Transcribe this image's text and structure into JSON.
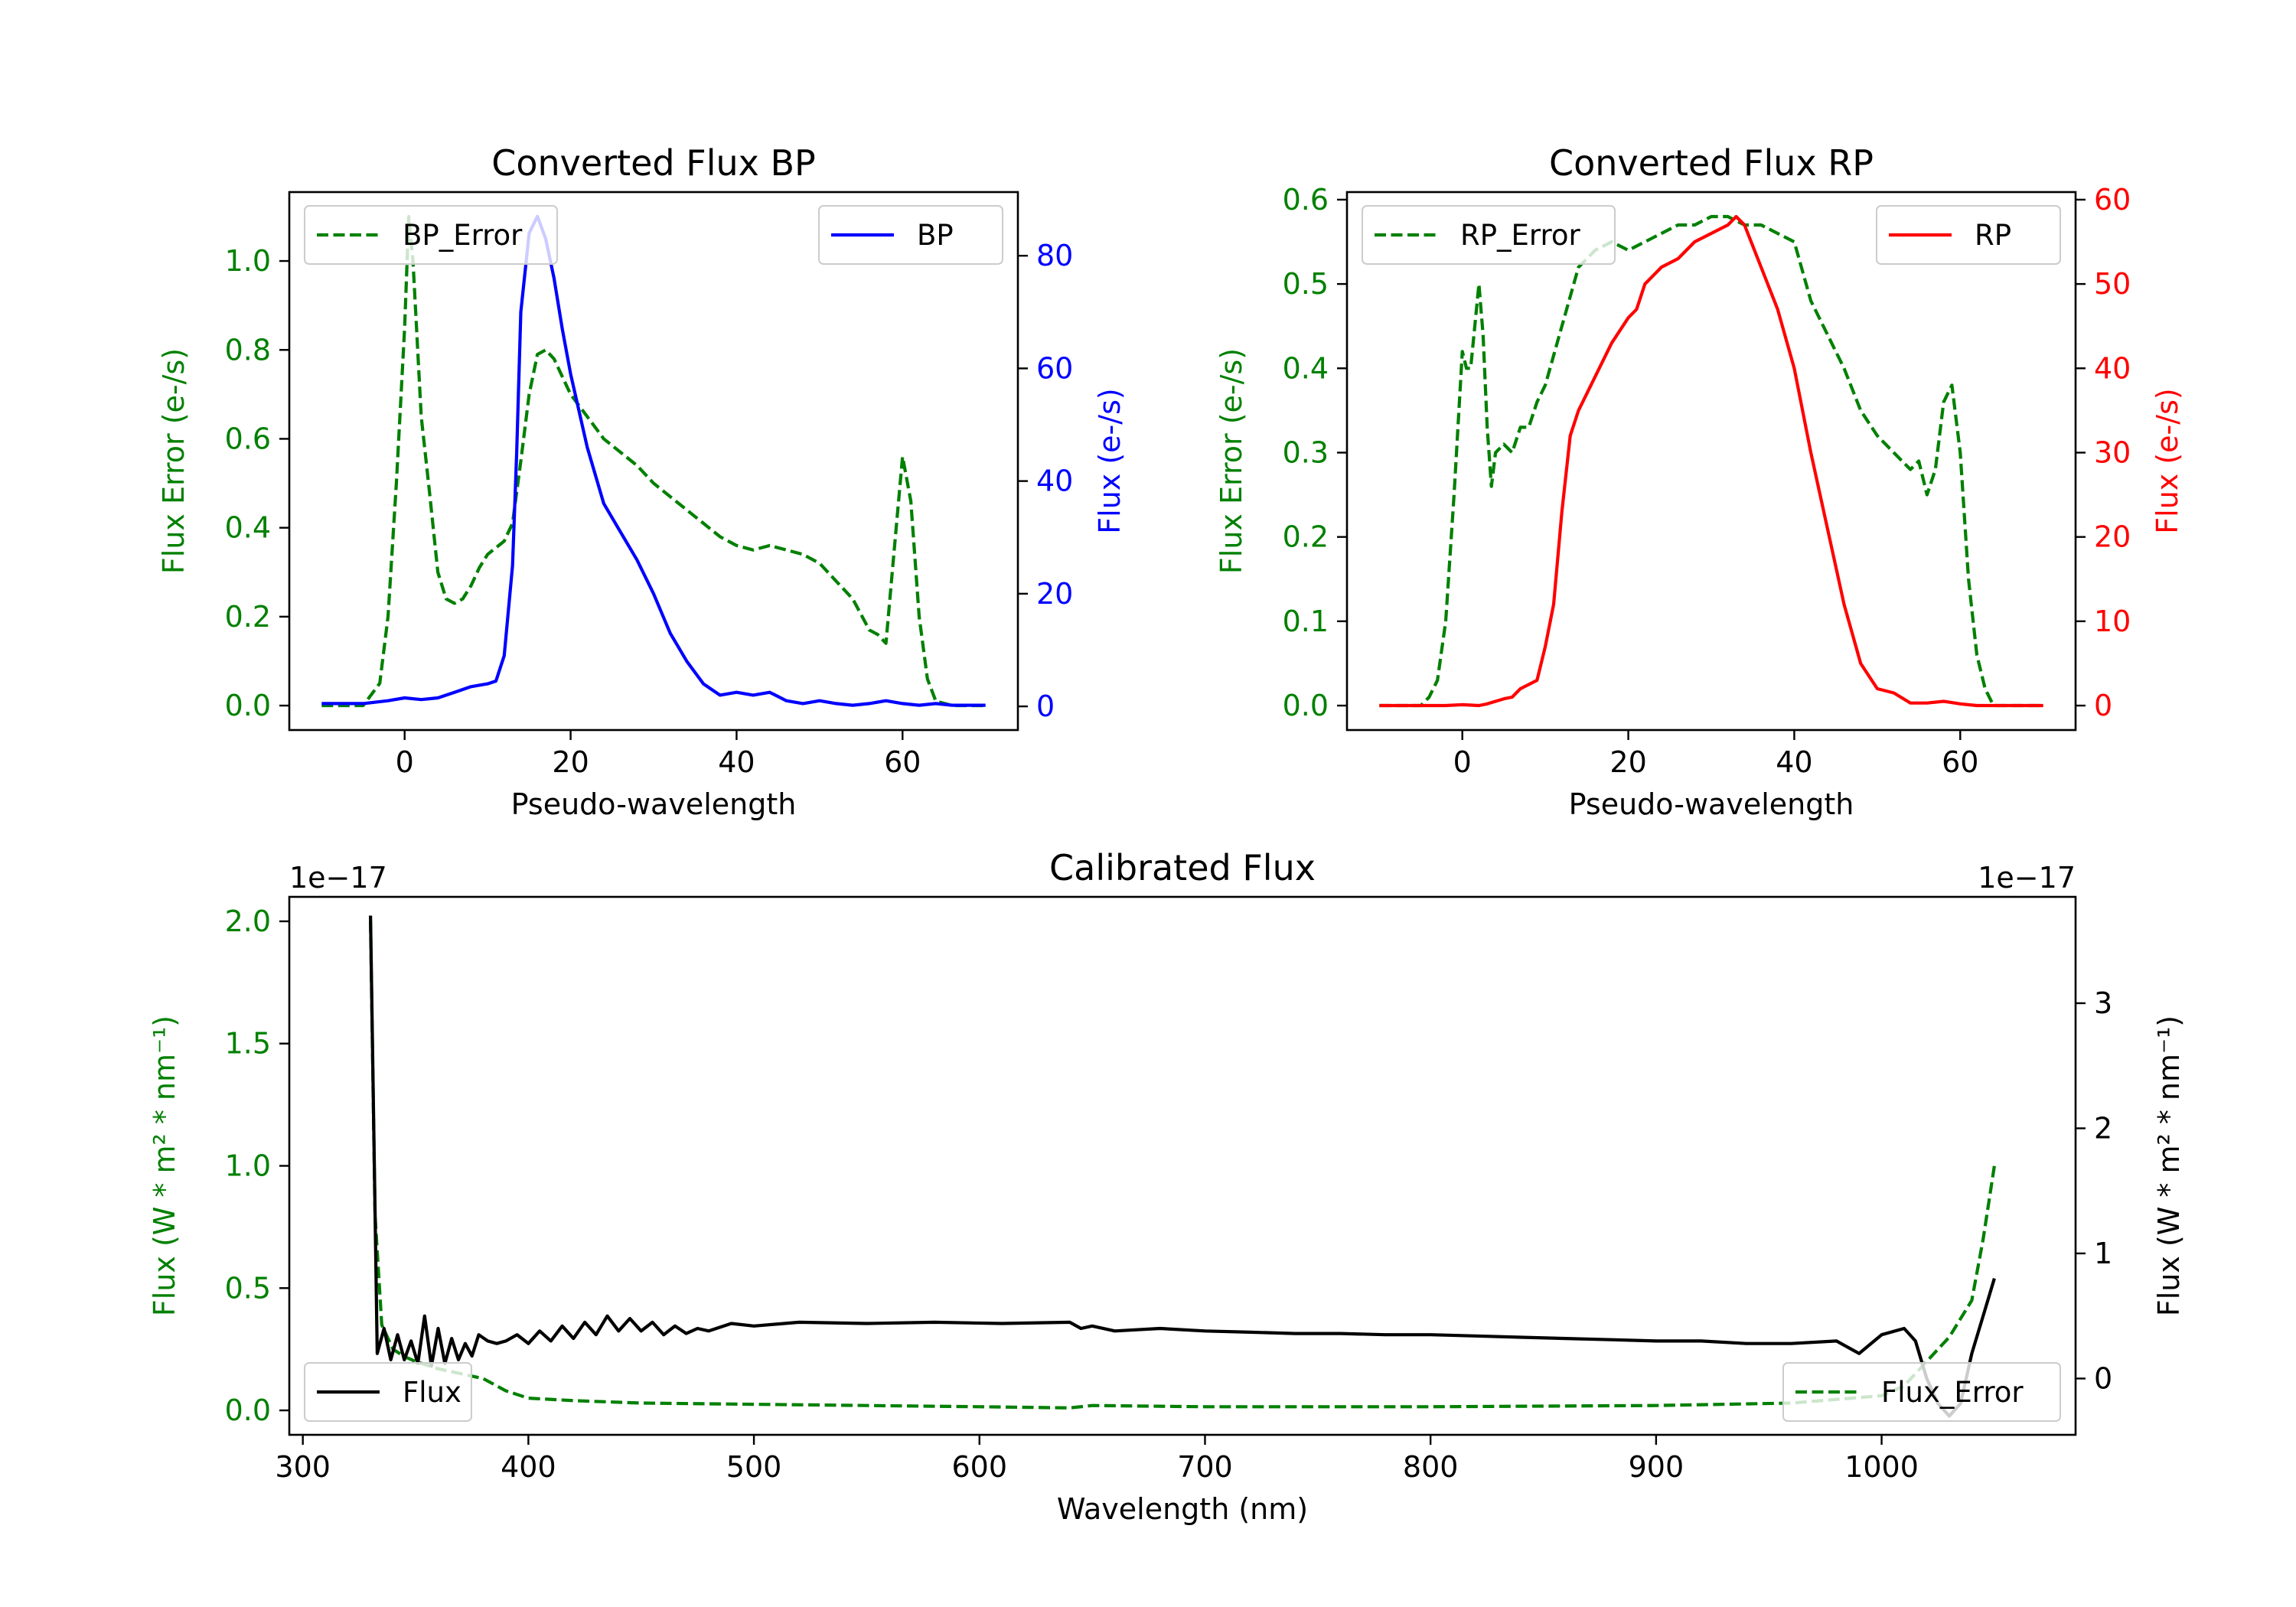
{
  "colors": {
    "error": "#008000",
    "bp": "#0000ff",
    "rp": "#ff0000",
    "flux": "#000000",
    "axis": "#000000"
  },
  "chart_data": [
    {
      "id": "bp",
      "type": "line",
      "title": "Converted Flux BP",
      "xlabel": "Pseudo-wavelength",
      "xlim": [
        -13.9,
        73.9
      ],
      "xticks": [
        0,
        20,
        40,
        60
      ],
      "xtick_labels": [
        "0",
        "20",
        "40",
        "60"
      ],
      "left_axis": {
        "label": "Flux Error (e-/s)",
        "color": "#008000",
        "ylim": [
          -0.055,
          1.155
        ],
        "ticks": [
          0.0,
          0.2,
          0.4,
          0.6,
          0.8,
          1.0
        ],
        "tick_labels": [
          "0.0",
          "0.2",
          "0.4",
          "0.6",
          "0.8",
          "1.0"
        ]
      },
      "right_axis": {
        "label": "Flux (e-/s)",
        "color": "#0000ff",
        "ylim": [
          -4.2,
          91.3
        ],
        "ticks": [
          0,
          20,
          40,
          60,
          80
        ],
        "tick_labels": [
          "0",
          "20",
          "40",
          "60",
          "80"
        ]
      },
      "legend_left": "BP_Error",
      "legend_right": "BP",
      "series": [
        {
          "name": "BP_Error",
          "axis": "left",
          "style": "dashed",
          "color": "#008000",
          "x": [
            -10,
            -5,
            -3,
            -2,
            -1,
            0,
            0.5,
            1,
            2,
            3,
            4,
            5,
            6,
            7,
            8,
            9,
            10,
            12,
            13,
            14,
            15,
            16,
            17,
            18,
            19,
            20,
            22,
            24,
            26,
            28,
            30,
            32,
            34,
            36,
            38,
            40,
            42,
            44,
            46,
            48,
            50,
            52,
            54,
            56,
            57,
            58,
            59,
            60,
            61,
            62,
            63,
            64,
            66,
            68,
            70
          ],
          "y": [
            0.0,
            0.0,
            0.05,
            0.2,
            0.5,
            0.85,
            1.1,
            1.0,
            0.65,
            0.48,
            0.3,
            0.24,
            0.23,
            0.24,
            0.27,
            0.31,
            0.34,
            0.37,
            0.41,
            0.55,
            0.7,
            0.79,
            0.8,
            0.78,
            0.74,
            0.7,
            0.65,
            0.6,
            0.57,
            0.54,
            0.5,
            0.47,
            0.44,
            0.41,
            0.38,
            0.36,
            0.35,
            0.36,
            0.35,
            0.34,
            0.32,
            0.28,
            0.24,
            0.17,
            0.16,
            0.14,
            0.35,
            0.56,
            0.46,
            0.2,
            0.06,
            0.01,
            0.0,
            0.0,
            0.0
          ]
        },
        {
          "name": "BP",
          "axis": "right",
          "style": "solid",
          "color": "#0000ff",
          "x": [
            -10,
            -5,
            -2,
            0,
            2,
            4,
            6,
            8,
            10,
            11,
            12,
            13,
            13.5,
            14,
            15,
            16,
            17,
            18,
            19,
            20,
            22,
            24,
            26,
            28,
            30,
            32,
            34,
            36,
            38,
            40,
            42,
            44,
            46,
            48,
            50,
            52,
            54,
            56,
            58,
            60,
            62,
            64,
            66,
            68,
            70
          ],
          "y": [
            0.5,
            0.5,
            1.0,
            1.5,
            1.2,
            1.5,
            2.5,
            3.5,
            4.0,
            4.5,
            9.0,
            25.0,
            45.0,
            70.0,
            84.0,
            87.0,
            83.0,
            76.0,
            67.0,
            59.0,
            46.0,
            36.0,
            31.0,
            26.0,
            20.0,
            13.0,
            8.0,
            4.0,
            2.0,
            2.5,
            2.0,
            2.5,
            1.0,
            0.5,
            1.0,
            0.5,
            0.2,
            0.5,
            1.0,
            0.5,
            0.2,
            0.5,
            0.2,
            0.2,
            0.2
          ]
        }
      ]
    },
    {
      "id": "rp",
      "type": "line",
      "title": "Converted Flux RP",
      "xlabel": "Pseudo-wavelength",
      "xlim": [
        -13.9,
        73.9
      ],
      "xticks": [
        0,
        20,
        40,
        60
      ],
      "xtick_labels": [
        "0",
        "20",
        "40",
        "60"
      ],
      "left_axis": {
        "label": "Flux Error (e-/s)",
        "color": "#008000",
        "ylim": [
          -0.029,
          0.609
        ],
        "ticks": [
          0.0,
          0.1,
          0.2,
          0.3,
          0.4,
          0.5,
          0.6
        ],
        "tick_labels": [
          "0.0",
          "0.1",
          "0.2",
          "0.3",
          "0.4",
          "0.5",
          "0.6"
        ]
      },
      "right_axis": {
        "label": "Flux (e-/s)",
        "color": "#ff0000",
        "ylim": [
          -2.9,
          60.9
        ],
        "ticks": [
          0,
          10,
          20,
          30,
          40,
          50,
          60
        ],
        "tick_labels": [
          "0",
          "10",
          "20",
          "30",
          "40",
          "50",
          "60"
        ]
      },
      "legend_left": "RP_Error",
      "legend_right": "RP",
      "series": [
        {
          "name": "RP_Error",
          "axis": "left",
          "style": "dashed",
          "color": "#008000",
          "x": [
            -10,
            -5,
            -4,
            -3,
            -2,
            -1,
            0,
            0.5,
            1,
            1.5,
            2,
            2.5,
            3,
            3.5,
            4,
            5,
            6,
            7,
            8,
            9,
            10,
            12,
            14,
            16,
            18,
            20,
            22,
            24,
            26,
            28,
            30,
            32,
            34,
            36,
            38,
            40,
            42,
            44,
            46,
            48,
            50,
            52,
            54,
            55,
            56,
            57,
            58,
            59,
            60,
            61,
            62,
            63,
            64,
            66,
            68,
            70
          ],
          "y": [
            0.0,
            0.0,
            0.01,
            0.03,
            0.1,
            0.25,
            0.42,
            0.4,
            0.4,
            0.45,
            0.5,
            0.44,
            0.33,
            0.26,
            0.3,
            0.31,
            0.3,
            0.33,
            0.33,
            0.36,
            0.38,
            0.45,
            0.52,
            0.54,
            0.55,
            0.54,
            0.55,
            0.56,
            0.57,
            0.57,
            0.58,
            0.58,
            0.57,
            0.57,
            0.56,
            0.55,
            0.48,
            0.44,
            0.4,
            0.35,
            0.32,
            0.3,
            0.28,
            0.29,
            0.25,
            0.28,
            0.36,
            0.38,
            0.3,
            0.15,
            0.06,
            0.02,
            0.0,
            0.0,
            0.0,
            0.0
          ]
        },
        {
          "name": "RP",
          "axis": "right",
          "style": "solid",
          "color": "#ff0000",
          "x": [
            -10,
            -5,
            -2,
            0,
            2,
            3,
            4,
            5,
            6,
            7,
            8,
            9,
            10,
            11,
            12,
            13,
            14,
            15,
            16,
            18,
            20,
            21,
            22,
            24,
            26,
            28,
            30,
            32,
            33,
            34,
            36,
            38,
            40,
            42,
            44,
            46,
            48,
            50,
            52,
            54,
            56,
            58,
            60,
            62,
            64,
            66,
            68,
            70
          ],
          "y": [
            0.0,
            0.0,
            0.0,
            0.1,
            0.0,
            0.2,
            0.5,
            0.8,
            1.0,
            2.0,
            2.5,
            3.0,
            7.0,
            12.0,
            23.0,
            32.0,
            35.0,
            37.0,
            39.0,
            43.0,
            46.0,
            47.0,
            50.0,
            52.0,
            53.0,
            55.0,
            56.0,
            57.0,
            58.0,
            57.0,
            52.0,
            47.0,
            40.0,
            30.0,
            21.0,
            12.0,
            5.0,
            2.0,
            1.5,
            0.3,
            0.3,
            0.5,
            0.2,
            0.0,
            0.0,
            0.0,
            0.0,
            0.0
          ]
        }
      ]
    },
    {
      "id": "cal",
      "type": "line",
      "title": "Calibrated Flux",
      "xlabel": "Wavelength (nm)",
      "xlim": [
        294,
        1086
      ],
      "xticks": [
        300,
        400,
        500,
        600,
        700,
        800,
        900,
        1000
      ],
      "xtick_labels": [
        "300",
        "400",
        "500",
        "600",
        "700",
        "800",
        "900",
        "1000"
      ],
      "left_axis": {
        "label": "Flux (W * m² * nm⁻¹)",
        "color": "#008000",
        "ylim": [
          -0.1,
          2.1
        ],
        "ticks": [
          0.0,
          0.5,
          1.0,
          1.5,
          2.0
        ],
        "tick_labels": [
          "0.0",
          "0.5",
          "1.0",
          "1.5",
          "2.0"
        ],
        "offset_text": "1e−17"
      },
      "right_axis": {
        "label": "Flux (W * m² * nm⁻¹)",
        "color": "#000000",
        "ylim": [
          -0.45,
          3.85
        ],
        "ticks": [
          0,
          1,
          2,
          3
        ],
        "tick_labels": [
          "0",
          "1",
          "2",
          "3"
        ],
        "offset_text": "1e−17"
      },
      "legend_left": "Flux",
      "legend_right": "Flux_Error",
      "series": [
        {
          "name": "Flux_Error",
          "axis": "left",
          "style": "dashed",
          "color": "#008000",
          "x": [
            330,
            332,
            335,
            340,
            345,
            350,
            360,
            370,
            380,
            390,
            400,
            420,
            450,
            500,
            550,
            600,
            640,
            650,
            700,
            800,
            900,
            960,
            1000,
            1010,
            1020,
            1030,
            1040,
            1045,
            1050
          ],
          "y": [
            2.0,
            0.8,
            0.35,
            0.25,
            0.22,
            0.2,
            0.17,
            0.15,
            0.13,
            0.08,
            0.05,
            0.04,
            0.03,
            0.025,
            0.02,
            0.015,
            0.01,
            0.02,
            0.015,
            0.015,
            0.02,
            0.03,
            0.06,
            0.1,
            0.2,
            0.3,
            0.45,
            0.7,
            1.0
          ]
        },
        {
          "name": "Flux",
          "axis": "right",
          "style": "solid",
          "color": "#000000",
          "x": [
            330,
            333,
            336,
            339,
            342,
            345,
            348,
            351,
            354,
            357,
            360,
            363,
            366,
            369,
            372,
            375,
            378,
            382,
            386,
            390,
            395,
            400,
            405,
            410,
            415,
            420,
            425,
            430,
            435,
            440,
            445,
            450,
            455,
            460,
            465,
            470,
            475,
            480,
            490,
            500,
            520,
            550,
            580,
            610,
            640,
            645,
            650,
            660,
            680,
            700,
            720,
            740,
            760,
            780,
            800,
            820,
            840,
            860,
            880,
            900,
            920,
            940,
            960,
            980,
            990,
            1000,
            1010,
            1015,
            1020,
            1025,
            1030,
            1035,
            1040,
            1045,
            1050
          ],
          "y": [
            3.7,
            0.2,
            0.4,
            0.15,
            0.35,
            0.15,
            0.3,
            0.12,
            0.5,
            0.1,
            0.4,
            0.12,
            0.32,
            0.15,
            0.28,
            0.18,
            0.35,
            0.3,
            0.28,
            0.3,
            0.35,
            0.28,
            0.38,
            0.3,
            0.42,
            0.32,
            0.45,
            0.35,
            0.5,
            0.38,
            0.48,
            0.38,
            0.45,
            0.35,
            0.42,
            0.36,
            0.4,
            0.38,
            0.44,
            0.42,
            0.45,
            0.44,
            0.45,
            0.44,
            0.45,
            0.4,
            0.42,
            0.38,
            0.4,
            0.38,
            0.37,
            0.36,
            0.36,
            0.35,
            0.35,
            0.34,
            0.33,
            0.32,
            0.31,
            0.3,
            0.3,
            0.28,
            0.28,
            0.3,
            0.2,
            0.35,
            0.4,
            0.3,
            0.0,
            -0.2,
            -0.3,
            -0.2,
            0.2,
            0.5,
            0.8
          ]
        }
      ]
    }
  ]
}
